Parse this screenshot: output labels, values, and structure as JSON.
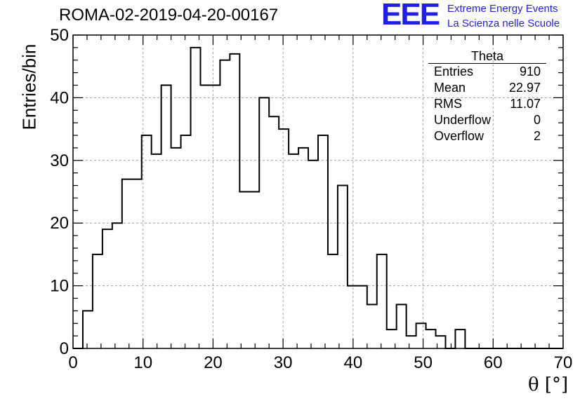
{
  "header": {
    "title": "ROMA-02-2019-04-20-00167",
    "logo_text": "EEE",
    "logo_line1": "Extreme Energy Events",
    "logo_line2": "La Scienza nelle Scuole"
  },
  "stats_box": {
    "name": "Theta",
    "rows": [
      {
        "label": "Entries",
        "value": "910"
      },
      {
        "label": "Mean",
        "value": "22.97"
      },
      {
        "label": "RMS",
        "value": "11.07"
      },
      {
        "label": "Underflow",
        "value": "0"
      },
      {
        "label": "Overflow",
        "value": "2"
      }
    ]
  },
  "colors": {
    "logo": "#1f1fe6",
    "grid": "#a0a0a0",
    "line": "#000000"
  },
  "chart_data": {
    "type": "histogram",
    "title": "ROMA-02-2019-04-20-00167",
    "xlabel": "θ [°]",
    "ylabel": "Entries/bin",
    "xlim": [
      0,
      70
    ],
    "ylim": [
      0,
      50
    ],
    "x_ticks": [
      0,
      10,
      20,
      30,
      40,
      50,
      60,
      70
    ],
    "y_ticks": [
      0,
      10,
      20,
      30,
      40,
      50
    ],
    "grid": true,
    "bin_width": 1.4,
    "bin_start": 0,
    "values": [
      0,
      6,
      15,
      19,
      20,
      27,
      27,
      34,
      31,
      42,
      32,
      34,
      48,
      42,
      42,
      46,
      47,
      25,
      25,
      40,
      37,
      35,
      31,
      32,
      30,
      34,
      15,
      26,
      10,
      10,
      7,
      15,
      3,
      7,
      2,
      4,
      3,
      2,
      0,
      3,
      0,
      0,
      0,
      0,
      0,
      0,
      0,
      0,
      0,
      0
    ]
  }
}
